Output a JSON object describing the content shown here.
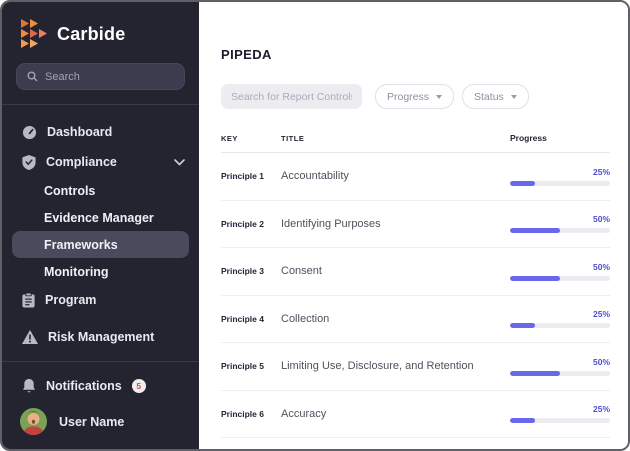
{
  "sidebar": {
    "logo_text": "Carbide",
    "search_placeholder": "Search",
    "nav": [
      {
        "label": "Dashboard",
        "icon": "gauge-icon"
      },
      {
        "label": "Compliance",
        "icon": "shield-check-icon",
        "expanded": true
      },
      {
        "label": "Controls"
      },
      {
        "label": "Evidence Manager"
      },
      {
        "label": "Frameworks",
        "active": true
      },
      {
        "label": "Monitoring"
      },
      {
        "label": "Program",
        "icon": "clipboard-icon"
      },
      {
        "label": "Risk Management",
        "icon": "warning-triangle-icon"
      }
    ],
    "notifications": {
      "label": "Notifications",
      "badge": "5"
    },
    "user": {
      "name": "User Name"
    }
  },
  "main": {
    "title": "PIPEDA",
    "search_placeholder": "Search for Report Controls",
    "filters": [
      {
        "label": "Progress"
      },
      {
        "label": "Status"
      }
    ],
    "table": {
      "columns": [
        "KEY",
        "TITLE",
        "Progress"
      ],
      "rows": [
        {
          "key": "Principle 1",
          "title": "Accountability",
          "progress_pct": 25,
          "progress_label": "25%"
        },
        {
          "key": "Principle 2",
          "title": "Identifying Purposes",
          "progress_pct": 50,
          "progress_label": "50%"
        },
        {
          "key": "Principle 3",
          "title": "Consent",
          "progress_pct": 50,
          "progress_label": "50%"
        },
        {
          "key": "Principle 4",
          "title": "Collection",
          "progress_pct": 25,
          "progress_label": "25%"
        },
        {
          "key": "Principle 5",
          "title": "Limiting Use, Disclosure, and Retention",
          "progress_pct": 50,
          "progress_label": "50%"
        },
        {
          "key": "Principle 6",
          "title": "Accuracy",
          "progress_pct": 25,
          "progress_label": "25%"
        }
      ]
    }
  },
  "colors": {
    "accent": "#6b66ee",
    "sidebar_bg": "#242431",
    "badge_text": "#d6494f",
    "logo_orange": "#ef8d3b",
    "logo_coral": "#e96a50"
  }
}
